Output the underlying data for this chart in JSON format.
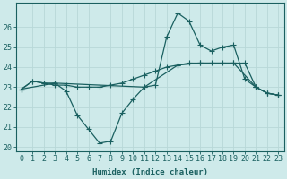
{
  "xlabel": "Humidex (Indice chaleur)",
  "bg_color": "#ceeaea",
  "grid_color": "#b8d8d8",
  "line_color": "#1a6060",
  "xlim": [
    -0.5,
    23.5
  ],
  "ylim": [
    19.8,
    27.2
  ],
  "yticks": [
    20,
    21,
    22,
    23,
    24,
    25,
    26
  ],
  "xticks": [
    0,
    1,
    2,
    3,
    4,
    5,
    6,
    7,
    8,
    9,
    10,
    11,
    12,
    13,
    14,
    15,
    16,
    17,
    18,
    19,
    20,
    21,
    22,
    23
  ],
  "line1_x": [
    0,
    1,
    2,
    3,
    4,
    5,
    6,
    7,
    8,
    9,
    10,
    11,
    12,
    13,
    14,
    15,
    16,
    17,
    18,
    19,
    20,
    21,
    22,
    23
  ],
  "line1_y": [
    22.9,
    23.3,
    23.2,
    23.2,
    22.8,
    21.6,
    20.9,
    20.2,
    20.3,
    21.7,
    22.4,
    23.0,
    23.1,
    25.5,
    26.7,
    26.3,
    25.1,
    24.8,
    25.0,
    25.1,
    23.4,
    23.0,
    22.7,
    22.6
  ],
  "line2_x": [
    0,
    1,
    2,
    3,
    4,
    5,
    6,
    7,
    8,
    9,
    10,
    11,
    12,
    13,
    14,
    15,
    16,
    17,
    18,
    19,
    20,
    21,
    22,
    23
  ],
  "line2_y": [
    22.9,
    23.3,
    23.2,
    23.1,
    23.1,
    23.0,
    23.0,
    23.0,
    23.1,
    23.2,
    23.4,
    23.6,
    23.8,
    24.0,
    24.1,
    24.2,
    24.2,
    24.2,
    24.2,
    24.2,
    24.2,
    23.0,
    22.7,
    22.6
  ],
  "line3_x": [
    0,
    3,
    11,
    14,
    16,
    19,
    21,
    22,
    23
  ],
  "line3_y": [
    22.9,
    23.2,
    23.0,
    24.1,
    24.2,
    24.2,
    23.0,
    22.7,
    22.6
  ],
  "marker_size": 2.5,
  "linewidth": 0.9,
  "label_fontsize": 6.5,
  "tick_fontsize": 6.0
}
